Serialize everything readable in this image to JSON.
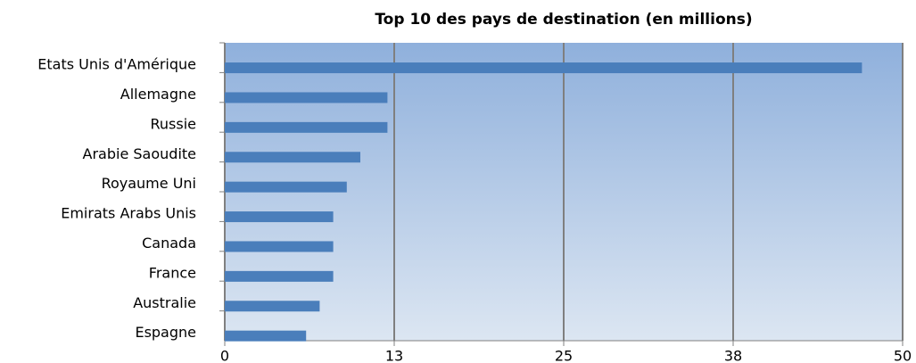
{
  "chart_data": {
    "type": "barh",
    "title": "Top 10 des pays de destination (en millions)",
    "categories": [
      "Etats Unis d'Amérique",
      "Allemagne",
      "Russie",
      "Arabie Saoudite",
      "Royaume Uni",
      "Emirats Arabs Unis",
      "Canada",
      "France",
      "Australie",
      "Espagne"
    ],
    "values": [
      47,
      12,
      12,
      10,
      9,
      8,
      8,
      8,
      7,
      6
    ],
    "color": "#4a7ebb",
    "xlim": [
      0,
      50
    ],
    "xticks": [
      0,
      {
        "value": 12.5,
        "label": "13"
      },
      25,
      {
        "value": 37.5,
        "label": "38"
      },
      50
    ],
    "grid": true
  }
}
